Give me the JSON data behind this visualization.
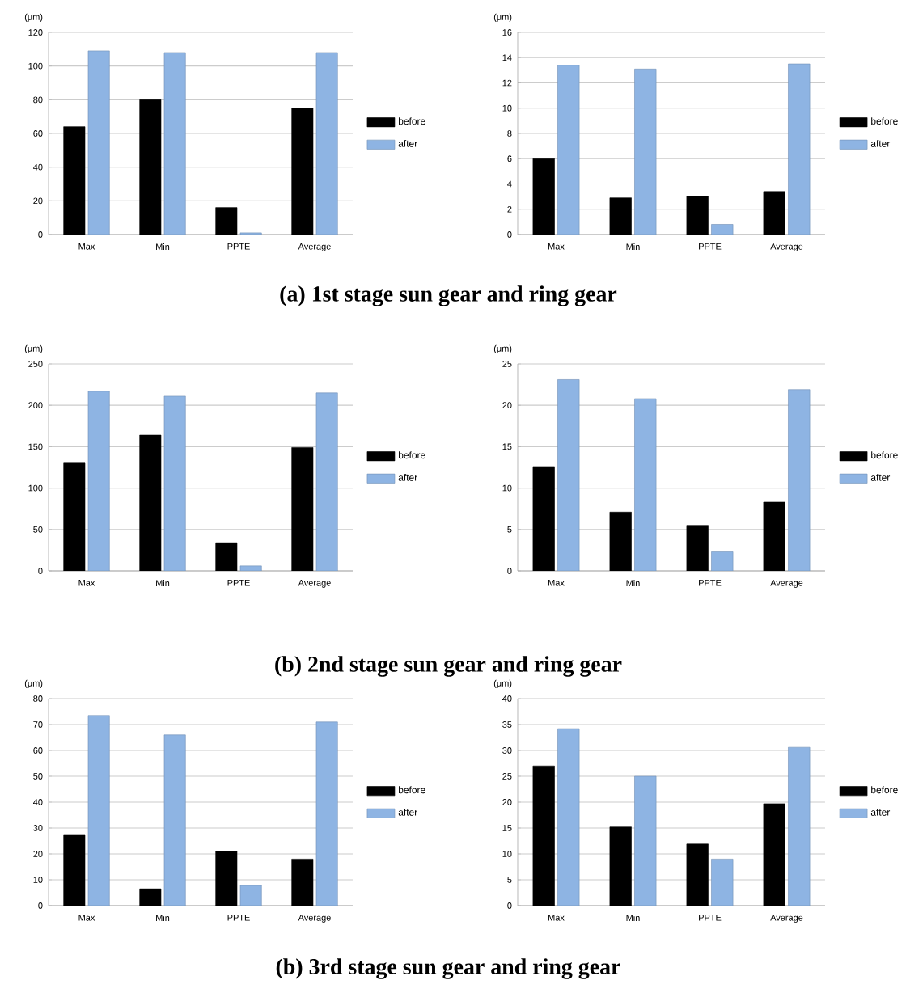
{
  "chart_data": [
    {
      "type": "bar",
      "ylabel": "(μm)",
      "categories": [
        "Max",
        "Min",
        "PPTE",
        "Average"
      ],
      "ylim": [
        0,
        120
      ],
      "yticks": [
        0,
        20,
        40,
        60,
        80,
        100,
        120
      ],
      "grid": "y",
      "legend": "right",
      "annotations": [
        "(a)  1st  stage  sun  gear  and  ring  gear"
      ],
      "series": [
        {
          "name": "before",
          "color": "#000000",
          "values": [
            64,
            80,
            16,
            75
          ]
        },
        {
          "name": "after",
          "color": "#8eb4e3",
          "values": [
            109,
            108,
            1,
            108
          ]
        }
      ]
    },
    {
      "type": "bar",
      "ylabel": "(μm)",
      "categories": [
        "Max",
        "Min",
        "PPTE",
        "Average"
      ],
      "ylim": [
        0,
        16
      ],
      "yticks": [
        0,
        2,
        4,
        6,
        8,
        10,
        12,
        14,
        16
      ],
      "grid": "y",
      "legend": "right",
      "series": [
        {
          "name": "before",
          "color": "#000000",
          "values": [
            6,
            2.9,
            3,
            3.4
          ]
        },
        {
          "name": "after",
          "color": "#8eb4e3",
          "values": [
            13.4,
            13.1,
            0.8,
            13.5
          ]
        }
      ]
    },
    {
      "type": "bar",
      "ylabel": "(μm)",
      "categories": [
        "Max",
        "Min",
        "PPTE",
        "Average"
      ],
      "ylim": [
        0,
        250
      ],
      "yticks": [
        0,
        50,
        100,
        150,
        200,
        250
      ],
      "grid": "y",
      "legend": "right",
      "annotations": [
        "(b)  2nd  stage  sun  gear  and  ring  gear"
      ],
      "series": [
        {
          "name": "before",
          "color": "#000000",
          "values": [
            131,
            164,
            34,
            149
          ]
        },
        {
          "name": "after",
          "color": "#8eb4e3",
          "values": [
            217,
            211,
            6,
            215
          ]
        }
      ]
    },
    {
      "type": "bar",
      "ylabel": "(μm)",
      "categories": [
        "Max",
        "Min",
        "PPTE",
        "Average"
      ],
      "ylim": [
        0,
        25
      ],
      "yticks": [
        0,
        5,
        10,
        15,
        20,
        25
      ],
      "grid": "y",
      "legend": "right",
      "series": [
        {
          "name": "before",
          "color": "#000000",
          "values": [
            12.6,
            7.1,
            5.5,
            8.3
          ]
        },
        {
          "name": "after",
          "color": "#8eb4e3",
          "values": [
            23.1,
            20.8,
            2.3,
            21.9
          ]
        }
      ]
    },
    {
      "type": "bar",
      "ylabel": "(μm)",
      "categories": [
        "Max",
        "Min",
        "PPTE",
        "Average"
      ],
      "ylim": [
        0,
        80
      ],
      "yticks": [
        0,
        10,
        20,
        30,
        40,
        50,
        60,
        70,
        80
      ],
      "grid": "y",
      "legend": "right",
      "annotations": [
        "(b)  3rd  stage  sun  gear  and  ring  gear"
      ],
      "series": [
        {
          "name": "before",
          "color": "#000000",
          "values": [
            27.5,
            6.5,
            21,
            18
          ]
        },
        {
          "name": "after",
          "color": "#8eb4e3",
          "values": [
            73.5,
            66,
            7.8,
            71
          ]
        }
      ]
    },
    {
      "type": "bar",
      "ylabel": "(μm)",
      "categories": [
        "Max",
        "Min",
        "PPTE",
        "Average"
      ],
      "ylim": [
        0,
        40
      ],
      "yticks": [
        0,
        5,
        10,
        15,
        20,
        25,
        30,
        35,
        40
      ],
      "grid": "y",
      "legend": "right",
      "series": [
        {
          "name": "before",
          "color": "#000000",
          "values": [
            27,
            15.2,
            11.9,
            19.7
          ]
        },
        {
          "name": "after",
          "color": "#8eb4e3",
          "values": [
            34.2,
            25,
            9,
            30.6
          ]
        }
      ]
    }
  ]
}
